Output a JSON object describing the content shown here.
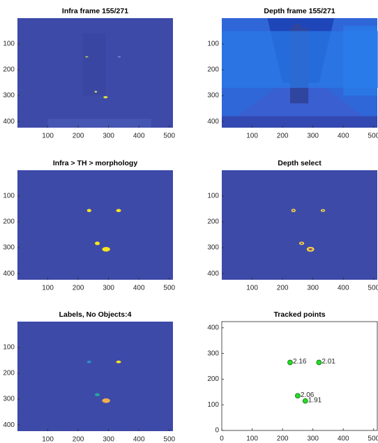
{
  "chart_data": [
    {
      "type": "image",
      "title": "Infra frame 155/271",
      "image": "infra",
      "xlim": [
        0,
        512
      ],
      "ylim": [
        0,
        424
      ],
      "y_reversed": true,
      "xticks": [
        100,
        200,
        300,
        400,
        500
      ],
      "yticks": [
        100,
        200,
        300,
        400
      ]
    },
    {
      "type": "image",
      "title": "Depth frame 155/271",
      "image": "depth",
      "xlim": [
        0,
        512
      ],
      "ylim": [
        0,
        424
      ],
      "y_reversed": true,
      "xticks": [
        100,
        200,
        300,
        400,
        500
      ],
      "yticks": [
        100,
        200,
        300,
        400
      ]
    },
    {
      "type": "image",
      "title": "Infra > TH > morphology",
      "image": "mask",
      "xlim": [
        0,
        512
      ],
      "ylim": [
        0,
        424
      ],
      "y_reversed": true,
      "xticks": [
        100,
        200,
        300,
        400,
        500
      ],
      "yticks": [
        100,
        200,
        300,
        400
      ]
    },
    {
      "type": "image",
      "title": "Depth select",
      "image": "rings",
      "xlim": [
        0,
        512
      ],
      "ylim": [
        0,
        424
      ],
      "y_reversed": true,
      "xticks": [
        100,
        200,
        300,
        400,
        500
      ],
      "yticks": [
        100,
        200,
        300,
        400
      ]
    },
    {
      "type": "image",
      "title": "Labels, No Objects:4",
      "image": "labels",
      "xlim": [
        0,
        512
      ],
      "ylim": [
        0,
        424
      ],
      "y_reversed": true,
      "xticks": [
        100,
        200,
        300,
        400,
        500
      ],
      "yticks": [
        100,
        200,
        300,
        400
      ]
    },
    {
      "type": "scatter",
      "title": "Tracked points",
      "x": [
        225,
        320,
        250,
        275
      ],
      "y": [
        265,
        265,
        135,
        115
      ],
      "labels": [
        2.16,
        2.01,
        2.06,
        1.91
      ],
      "color": "#22dd22",
      "xlim": [
        0,
        512
      ],
      "ylim": [
        0,
        424
      ],
      "xticks": [
        0,
        100,
        200,
        300,
        400,
        500
      ],
      "yticks": [
        0,
        100,
        200,
        300,
        400
      ]
    }
  ]
}
